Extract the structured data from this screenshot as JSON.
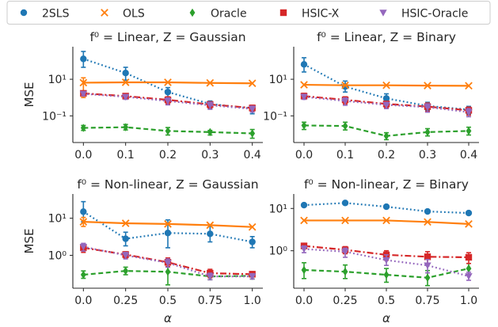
{
  "legend": {
    "placement": "top",
    "items": [
      {
        "name": "2SLS",
        "color": "#1f77b4",
        "marker": "circle"
      },
      {
        "name": "OLS",
        "color": "#ff7f0e",
        "marker": "x"
      },
      {
        "name": "Oracle",
        "color": "#2ca02c",
        "marker": "diamond"
      },
      {
        "name": "HSIC-X",
        "color": "#d62728",
        "marker": "square"
      },
      {
        "name": "HSIC-Oracle",
        "color": "#9467bd",
        "marker": "triangle-down"
      }
    ]
  },
  "chart_data": [
    {
      "type": "line",
      "title": "f⁰ = Linear, Z = Gaussian",
      "xlabel": "",
      "ylabel": "MSE",
      "yscale": "log",
      "categories": [
        "0.0",
        "0.1",
        "0.2",
        "0.3",
        "0.4"
      ],
      "yticks": [
        {
          "value": 10,
          "label": "10¹"
        },
        {
          "value": 0.1,
          "label": "10⁻¹"
        }
      ],
      "ylim": [
        0.0035,
        600
      ],
      "grid": false,
      "series": [
        {
          "name": "2SLS",
          "values": [
            130,
            22,
            2.0,
            0.45,
            0.25
          ],
          "err_low": [
            45,
            9,
            1.0,
            0.25,
            0.13
          ],
          "err_high": [
            330,
            45,
            3.5,
            0.65,
            0.35
          ]
        },
        {
          "name": "OLS",
          "values": [
            6.5,
            6.8,
            6.8,
            6.3,
            6.0
          ],
          "err_low": [
            1.0,
            6.8,
            6.8,
            6.3,
            6.0
          ],
          "err_high": [
            12,
            6.8,
            6.8,
            6.3,
            6.0
          ]
        },
        {
          "name": "Oracle",
          "values": [
            0.022,
            0.024,
            0.015,
            0.013,
            0.011
          ],
          "err_low": [
            0.016,
            0.017,
            0.009,
            0.009,
            0.006
          ],
          "err_high": [
            0.03,
            0.034,
            0.023,
            0.016,
            0.018
          ]
        },
        {
          "name": "HSIC-X",
          "values": [
            1.7,
            1.2,
            0.75,
            0.42,
            0.27
          ],
          "err_low": [
            1.4,
            0.9,
            0.45,
            0.27,
            0.19
          ],
          "err_high": [
            2.1,
            1.5,
            1.1,
            0.58,
            0.38
          ]
        },
        {
          "name": "HSIC-Oracle",
          "values": [
            1.6,
            1.1,
            0.65,
            0.38,
            0.24
          ],
          "err_low": [
            1.3,
            0.8,
            0.4,
            0.23,
            0.16
          ],
          "err_high": [
            1.9,
            1.4,
            0.95,
            0.55,
            0.34
          ]
        }
      ]
    },
    {
      "type": "line",
      "title": "f⁰ = Linear, Z = Binary",
      "xlabel": "",
      "ylabel": "",
      "yscale": "log",
      "categories": [
        "0.0",
        "0.1",
        "0.2",
        "0.3",
        "0.4"
      ],
      "yticks": [
        {
          "value": 10,
          "label": "10¹"
        },
        {
          "value": 0.1,
          "label": "10⁻¹"
        }
      ],
      "ylim": [
        0.0035,
        600
      ],
      "grid": false,
      "series": [
        {
          "name": "2SLS",
          "values": [
            65,
            4.0,
            0.9,
            0.35,
            0.22
          ],
          "err_low": [
            25,
            2.0,
            0.5,
            0.2,
            0.13
          ],
          "err_high": [
            150,
            8.0,
            1.6,
            0.55,
            0.33
          ]
        },
        {
          "name": "OLS",
          "values": [
            5.0,
            4.7,
            4.7,
            4.5,
            4.4
          ],
          "err_low": [
            5.0,
            4.7,
            4.7,
            4.5,
            4.4
          ],
          "err_high": [
            5.0,
            4.7,
            4.7,
            4.5,
            4.4
          ]
        },
        {
          "name": "Oracle",
          "values": [
            0.03,
            0.028,
            0.008,
            0.013,
            0.015
          ],
          "err_low": [
            0.018,
            0.017,
            0.005,
            0.008,
            0.009
          ],
          "err_high": [
            0.045,
            0.045,
            0.012,
            0.02,
            0.024
          ]
        },
        {
          "name": "HSIC-X",
          "values": [
            1.2,
            0.75,
            0.45,
            0.32,
            0.2
          ],
          "err_low": [
            0.9,
            0.45,
            0.28,
            0.18,
            0.11
          ],
          "err_high": [
            1.7,
            1.1,
            0.6,
            0.5,
            0.3
          ]
        },
        {
          "name": "HSIC-Oracle",
          "values": [
            1.1,
            0.65,
            0.4,
            0.3,
            0.16
          ],
          "err_low": [
            0.8,
            0.38,
            0.25,
            0.16,
            0.09
          ],
          "err_high": [
            1.5,
            0.95,
            0.55,
            0.45,
            0.25
          ]
        }
      ]
    },
    {
      "type": "line",
      "title": "f⁰ = Non-linear, Z = Gaussian",
      "xlabel": "α",
      "ylabel": "MSE",
      "yscale": "log",
      "categories": [
        "0.0",
        "0.25",
        "0.5",
        "0.75",
        "1.0"
      ],
      "yticks": [
        {
          "value": 10,
          "label": "10¹"
        },
        {
          "value": 1,
          "label": "10⁰"
        }
      ],
      "ylim": [
        0.13,
        45
      ],
      "grid": false,
      "series": [
        {
          "name": "2SLS",
          "values": [
            15,
            2.8,
            4.0,
            3.8,
            2.3
          ],
          "err_low": [
            8,
            1.8,
            1.6,
            2.3,
            1.6
          ],
          "err_high": [
            28,
            4.2,
            9.0,
            6.5,
            3.2
          ]
        },
        {
          "name": "OLS",
          "values": [
            8.0,
            7.3,
            7.0,
            6.5,
            5.8
          ],
          "err_low": [
            6.0,
            7.3,
            7.0,
            6.5,
            5.8
          ],
          "err_high": [
            10.5,
            7.3,
            7.0,
            6.5,
            5.8
          ]
        },
        {
          "name": "Oracle",
          "values": [
            0.3,
            0.38,
            0.36,
            0.27,
            0.28
          ],
          "err_low": [
            0.24,
            0.3,
            0.16,
            0.22,
            0.23
          ],
          "err_high": [
            0.38,
            0.48,
            0.7,
            0.33,
            0.34
          ]
        },
        {
          "name": "HSIC-X",
          "values": [
            1.6,
            1.05,
            0.65,
            0.33,
            0.31
          ],
          "err_low": [
            1.2,
            0.85,
            0.5,
            0.25,
            0.27
          ],
          "err_high": [
            2.0,
            1.25,
            0.85,
            0.42,
            0.36
          ]
        },
        {
          "name": "HSIC-Oracle",
          "values": [
            1.7,
            1.0,
            0.63,
            0.27,
            0.27
          ],
          "err_low": [
            1.3,
            0.8,
            0.48,
            0.22,
            0.23
          ],
          "err_high": [
            2.1,
            1.2,
            0.8,
            0.33,
            0.32
          ]
        }
      ]
    },
    {
      "type": "line",
      "title": "f⁰ = Non-linear, Z = Binary",
      "xlabel": "α",
      "ylabel": "",
      "yscale": "log",
      "categories": [
        "0.0",
        "0.25",
        "0.5",
        "0.75",
        "1.0"
      ],
      "yticks": [
        {
          "value": 10,
          "label": "10¹"
        },
        {
          "value": 1,
          "label": "10⁰"
        }
      ],
      "ylim": [
        0.13,
        22
      ],
      "grid": false,
      "series": [
        {
          "name": "2SLS",
          "values": [
            12,
            13.5,
            11,
            8.5,
            7.8
          ],
          "err_low": [
            11,
            12.5,
            10,
            7.8,
            7.2
          ],
          "err_high": [
            13,
            14.5,
            12,
            9.2,
            8.4
          ]
        },
        {
          "name": "OLS",
          "values": [
            5.2,
            5.2,
            5.2,
            4.8,
            4.3
          ],
          "err_low": [
            5.2,
            5.2,
            5.2,
            4.8,
            4.3
          ],
          "err_high": [
            5.2,
            5.2,
            5.2,
            4.8,
            4.3
          ]
        },
        {
          "name": "Oracle",
          "values": [
            0.35,
            0.32,
            0.27,
            0.23,
            0.38
          ],
          "err_low": [
            0.22,
            0.22,
            0.18,
            0.15,
            0.28
          ],
          "err_high": [
            0.52,
            0.46,
            0.38,
            0.34,
            0.5
          ]
        },
        {
          "name": "HSIC-X",
          "values": [
            1.3,
            1.05,
            0.8,
            0.72,
            0.7
          ],
          "err_low": [
            1.15,
            0.85,
            0.6,
            0.5,
            0.5
          ],
          "err_high": [
            1.5,
            1.25,
            1.0,
            0.95,
            0.9
          ]
        },
        {
          "name": "HSIC-Oracle",
          "values": [
            1.1,
            0.95,
            0.6,
            0.45,
            0.25
          ],
          "err_low": [
            0.9,
            0.7,
            0.45,
            0.3,
            0.2
          ],
          "err_high": [
            1.3,
            1.15,
            0.8,
            0.62,
            0.31
          ]
        }
      ]
    }
  ]
}
